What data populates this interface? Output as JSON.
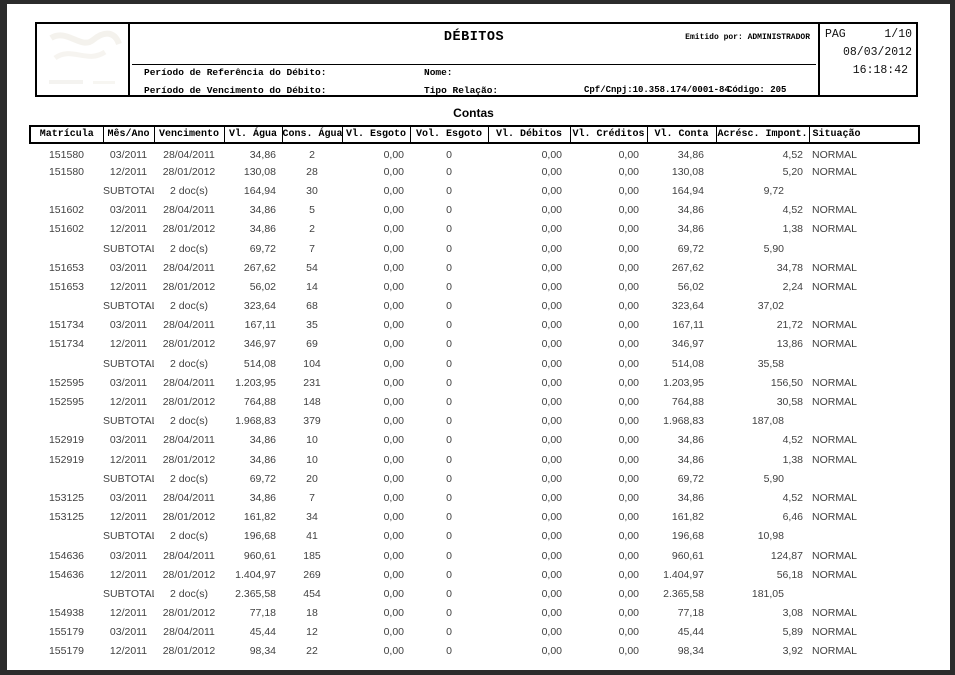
{
  "report": {
    "title": "DÉBITOS",
    "emitted_by": "Emitido por: ADMINISTRADOR",
    "page_label": "PAG",
    "page": "1/10",
    "date": "08/03/2012",
    "time": "16:18:42",
    "filters": {
      "ref_label": "Período de Referência do Débito:",
      "venc_label": "Período de Vencimento do Débito:",
      "nome_label": "Nome:",
      "tipo_label": "Tipo Relação:",
      "cpf_cnpj": "Cpf/Cnpj:10.358.174/0001-84",
      "codigo": "Código: 205"
    }
  },
  "section_title": "Contas",
  "table": {
    "headers": [
      "Matrícula",
      "Mês/Ano",
      "Vencimento",
      "Vl. Água",
      "Cons. Água",
      "Vl. Esgoto",
      "Vol. Esgoto",
      "Vl. Débitos",
      "Vl. Créditos",
      "Vl. Conta",
      "Acrésc. Impont.",
      "Situação"
    ],
    "rows": [
      [
        "151580",
        "03/2011",
        "28/04/2011",
        "34,86",
        "2",
        "0,00",
        "0",
        "0,00",
        "0,00",
        "34,86",
        "4,52",
        "NORMAL"
      ],
      [
        "151580",
        "12/2011",
        "28/01/2012",
        "130,08",
        "28",
        "0,00",
        "0",
        "0,00",
        "0,00",
        "130,08",
        "5,20",
        "NORMAL"
      ],
      [
        "",
        "SUBTOTAL",
        "2 doc(s)",
        "164,94",
        "30",
        "0,00",
        "0",
        "0,00",
        "0,00",
        "164,94",
        "9,72",
        ""
      ],
      [
        "151602",
        "03/2011",
        "28/04/2011",
        "34,86",
        "5",
        "0,00",
        "0",
        "0,00",
        "0,00",
        "34,86",
        "4,52",
        "NORMAL"
      ],
      [
        "151602",
        "12/2011",
        "28/01/2012",
        "34,86",
        "2",
        "0,00",
        "0",
        "0,00",
        "0,00",
        "34,86",
        "1,38",
        "NORMAL"
      ],
      [
        "",
        "SUBTOTAL",
        "2 doc(s)",
        "69,72",
        "7",
        "0,00",
        "0",
        "0,00",
        "0,00",
        "69,72",
        "5,90",
        ""
      ],
      [
        "151653",
        "03/2011",
        "28/04/2011",
        "267,62",
        "54",
        "0,00",
        "0",
        "0,00",
        "0,00",
        "267,62",
        "34,78",
        "NORMAL"
      ],
      [
        "151653",
        "12/2011",
        "28/01/2012",
        "56,02",
        "14",
        "0,00",
        "0",
        "0,00",
        "0,00",
        "56,02",
        "2,24",
        "NORMAL"
      ],
      [
        "",
        "SUBTOTAL",
        "2 doc(s)",
        "323,64",
        "68",
        "0,00",
        "0",
        "0,00",
        "0,00",
        "323,64",
        "37,02",
        ""
      ],
      [
        "151734",
        "03/2011",
        "28/04/2011",
        "167,11",
        "35",
        "0,00",
        "0",
        "0,00",
        "0,00",
        "167,11",
        "21,72",
        "NORMAL"
      ],
      [
        "151734",
        "12/2011",
        "28/01/2012",
        "346,97",
        "69",
        "0,00",
        "0",
        "0,00",
        "0,00",
        "346,97",
        "13,86",
        "NORMAL"
      ],
      [
        "",
        "SUBTOTAL",
        "2 doc(s)",
        "514,08",
        "104",
        "0,00",
        "0",
        "0,00",
        "0,00",
        "514,08",
        "35,58",
        ""
      ],
      [
        "152595",
        "03/2011",
        "28/04/2011",
        "1.203,95",
        "231",
        "0,00",
        "0",
        "0,00",
        "0,00",
        "1.203,95",
        "156,50",
        "NORMAL"
      ],
      [
        "152595",
        "12/2011",
        "28/01/2012",
        "764,88",
        "148",
        "0,00",
        "0",
        "0,00",
        "0,00",
        "764,88",
        "30,58",
        "NORMAL"
      ],
      [
        "",
        "SUBTOTAL",
        "2 doc(s)",
        "1.968,83",
        "379",
        "0,00",
        "0",
        "0,00",
        "0,00",
        "1.968,83",
        "187,08",
        ""
      ],
      [
        "152919",
        "03/2011",
        "28/04/2011",
        "34,86",
        "10",
        "0,00",
        "0",
        "0,00",
        "0,00",
        "34,86",
        "4,52",
        "NORMAL"
      ],
      [
        "152919",
        "12/2011",
        "28/01/2012",
        "34,86",
        "10",
        "0,00",
        "0",
        "0,00",
        "0,00",
        "34,86",
        "1,38",
        "NORMAL"
      ],
      [
        "",
        "SUBTOTAL",
        "2 doc(s)",
        "69,72",
        "20",
        "0,00",
        "0",
        "0,00",
        "0,00",
        "69,72",
        "5,90",
        ""
      ],
      [
        "153125",
        "03/2011",
        "28/04/2011",
        "34,86",
        "7",
        "0,00",
        "0",
        "0,00",
        "0,00",
        "34,86",
        "4,52",
        "NORMAL"
      ],
      [
        "153125",
        "12/2011",
        "28/01/2012",
        "161,82",
        "34",
        "0,00",
        "0",
        "0,00",
        "0,00",
        "161,82",
        "6,46",
        "NORMAL"
      ],
      [
        "",
        "SUBTOTAL",
        "2 doc(s)",
        "196,68",
        "41",
        "0,00",
        "0",
        "0,00",
        "0,00",
        "196,68",
        "10,98",
        ""
      ],
      [
        "154636",
        "03/2011",
        "28/04/2011",
        "960,61",
        "185",
        "0,00",
        "0",
        "0,00",
        "0,00",
        "960,61",
        "124,87",
        "NORMAL"
      ],
      [
        "154636",
        "12/2011",
        "28/01/2012",
        "1.404,97",
        "269",
        "0,00",
        "0",
        "0,00",
        "0,00",
        "1.404,97",
        "56,18",
        "NORMAL"
      ],
      [
        "",
        "SUBTOTAL",
        "2 doc(s)",
        "2.365,58",
        "454",
        "0,00",
        "0",
        "0,00",
        "0,00",
        "2.365,58",
        "181,05",
        ""
      ],
      [
        "154938",
        "12/2011",
        "28/01/2012",
        "77,18",
        "18",
        "0,00",
        "0",
        "0,00",
        "0,00",
        "77,18",
        "3,08",
        "NORMAL"
      ],
      [
        "155179",
        "03/2011",
        "28/04/2011",
        "45,44",
        "12",
        "0,00",
        "0",
        "0,00",
        "0,00",
        "45,44",
        "5,89",
        "NORMAL"
      ],
      [
        "155179",
        "12/2011",
        "28/01/2012",
        "98,34",
        "22",
        "0,00",
        "0",
        "0,00",
        "0,00",
        "98,34",
        "3,92",
        "NORMAL"
      ]
    ]
  }
}
